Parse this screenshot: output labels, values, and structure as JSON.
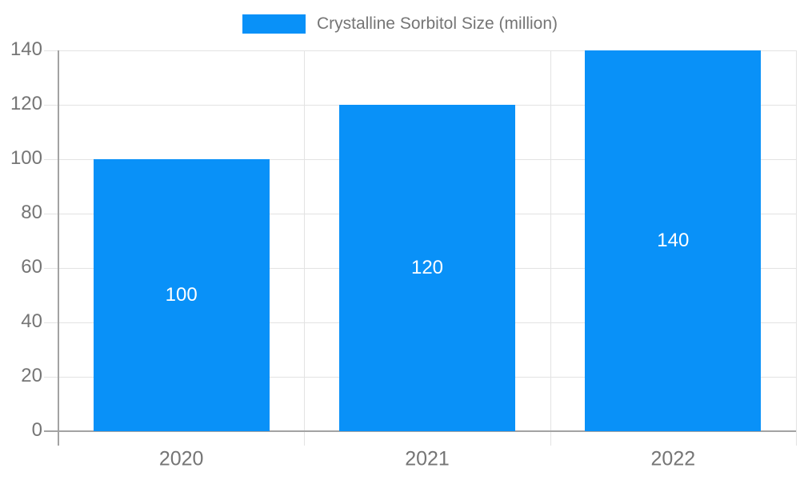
{
  "legend": {
    "label": "Crystalline Sorbitol Size (million)"
  },
  "chart_data": {
    "type": "bar",
    "title": "",
    "series_name": "Crystalline Sorbitol Size (million)",
    "categories": [
      "2020",
      "2021",
      "2022"
    ],
    "values": [
      100,
      120,
      140
    ],
    "bar_labels": [
      "100",
      "120",
      "140"
    ],
    "xlabel": "",
    "ylabel": "",
    "ylim": [
      0,
      140
    ],
    "yticks": [
      0,
      20,
      40,
      60,
      80,
      100,
      120,
      140
    ],
    "grid": true,
    "legend_position": "top-center",
    "colors": {
      "bar": "#0991f8",
      "grid": "#e3e3e3",
      "axis": "#a3a3a3",
      "tick_label": "#757575",
      "legend_text": "#757575",
      "value_label": "#ffffff"
    }
  }
}
